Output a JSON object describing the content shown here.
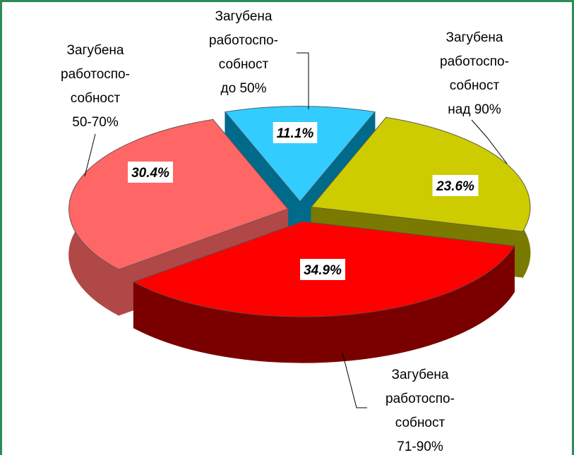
{
  "chart_data": {
    "type": "pie3d",
    "categories": [
      "Загубена\nработоспо-\nсобност\nдо 50%",
      "Загубена\nработоспо-\nсобност\nнад 90%",
      "Загубена\nработоспо-\nсобност\n71-90%",
      "Загубена\nработоспо-\nсобност\n50-70%"
    ],
    "values": [
      11.1,
      23.6,
      34.9,
      30.4
    ],
    "value_labels": [
      "11.1%",
      "23.6%",
      "34.9%",
      "30.4%"
    ],
    "colors": [
      "#33ccff",
      "#cccc00",
      "#ff0000",
      "#ff6666"
    ]
  }
}
